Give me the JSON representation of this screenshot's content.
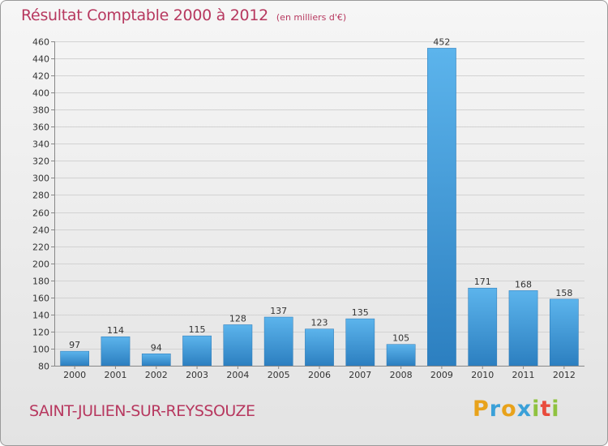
{
  "header": {
    "title": "Résultat Comptable 2000 à 2012",
    "unit_note": "(en milliers d'€)"
  },
  "footer": {
    "commune": "SAINT-JULIEN-SUR-REYSSOUZE",
    "logo": {
      "letters": [
        "P",
        "r",
        "o",
        "x",
        "i",
        "t",
        "i"
      ],
      "colors": [
        "#e8a21b",
        "#3aa0d8",
        "#e8a21b",
        "#3aa0d8",
        "#8fc23f",
        "#e94b3c",
        "#8fc23f"
      ]
    }
  },
  "chart_data": {
    "type": "bar",
    "title": "Résultat Comptable 2000 à 2012",
    "subtitle": "(en milliers d'€)",
    "categories": [
      "2000",
      "2001",
      "2002",
      "2003",
      "2004",
      "2005",
      "2006",
      "2007",
      "2008",
      "2009",
      "2010",
      "2011",
      "2012"
    ],
    "values": [
      97,
      114,
      94,
      115,
      128,
      137,
      123,
      135,
      105,
      452,
      171,
      168,
      158
    ],
    "ylim": [
      80,
      460
    ],
    "yticks": [
      80,
      100,
      120,
      140,
      160,
      180,
      200,
      220,
      240,
      260,
      280,
      300,
      320,
      340,
      360,
      380,
      400,
      420,
      440,
      460
    ],
    "grid": true,
    "bar_color": "#3b97db"
  }
}
